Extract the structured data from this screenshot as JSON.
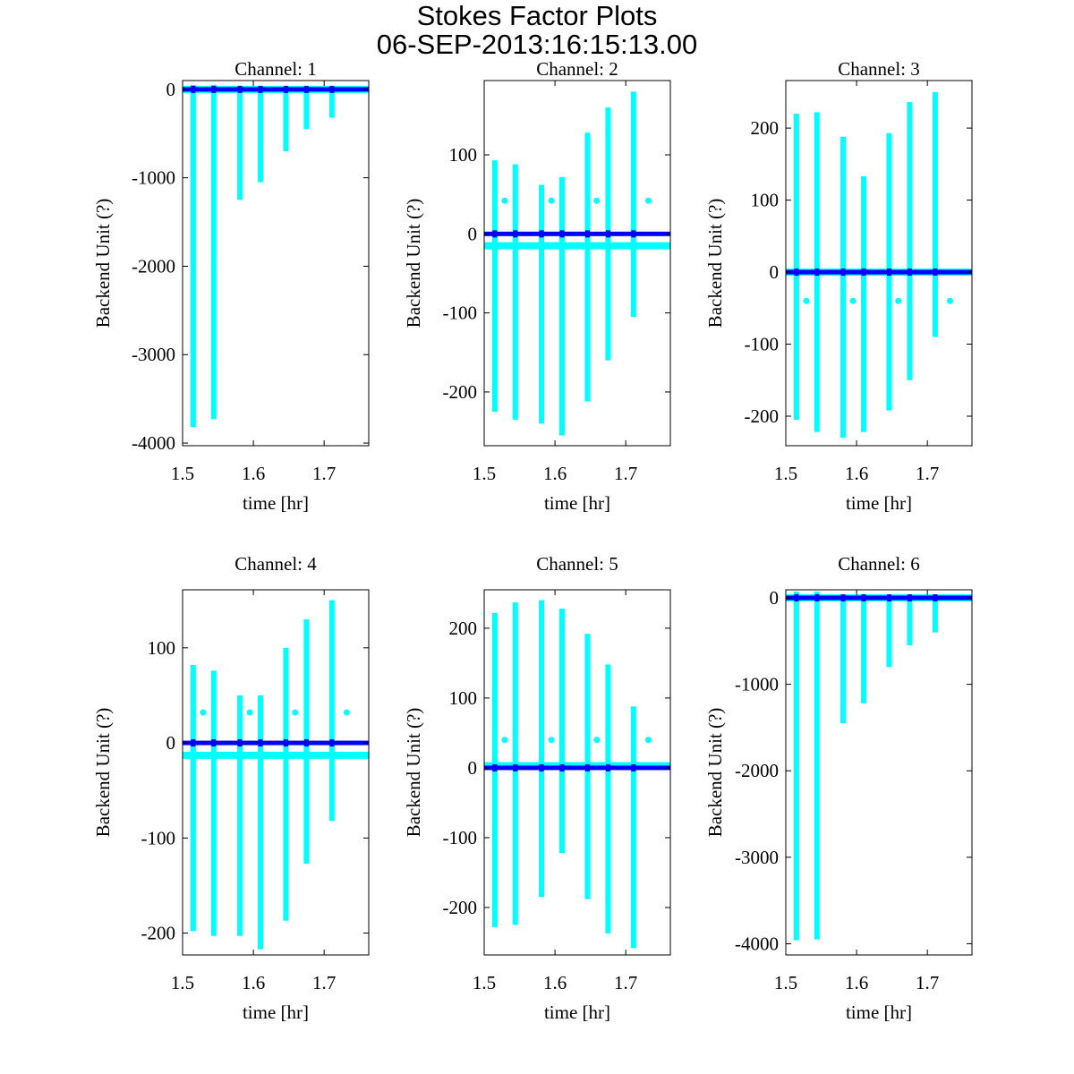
{
  "title": "Stokes Factor Plots",
  "subtitle": "06-SEP-2013:16:15:13.00",
  "colors": {
    "streak": "#00ffff",
    "zero_line": "#0000ff",
    "axes": "#000000"
  },
  "chart_data": [
    {
      "type": "scatter",
      "title": "Channel: 1",
      "xlabel": "time [hr]",
      "ylabel": "Backend Unit (?)",
      "xlim": [
        1.5,
        1.763
      ],
      "ylim": [
        -4030,
        100
      ],
      "xticks": [
        "1.5",
        "1.6",
        "1.7"
      ],
      "xtick_values": [
        1.5,
        1.6,
        1.7
      ],
      "yticks": [
        "0",
        "-1000",
        "-2000",
        "-3000",
        "-4000"
      ],
      "ytick_values": [
        0,
        -1000,
        -2000,
        -3000,
        -4000
      ],
      "baseline": 0,
      "zero_line": 0,
      "streaks": [
        {
          "x": 1.515,
          "min": -3820,
          "max": 50
        },
        {
          "x": 1.544,
          "min": -3730,
          "max": 50
        },
        {
          "x": 1.581,
          "min": -1250,
          "max": 0
        },
        {
          "x": 1.61,
          "min": -1050,
          "max": 0
        },
        {
          "x": 1.646,
          "min": -700,
          "max": 0
        },
        {
          "x": 1.675,
          "min": -450,
          "max": 0
        },
        {
          "x": 1.711,
          "min": -320,
          "max": 0
        }
      ],
      "dots": []
    },
    {
      "type": "scatter",
      "title": "Channel: 2",
      "xlabel": "time [hr]",
      "ylabel": "Backend Unit (?)",
      "xlim": [
        1.5,
        1.763
      ],
      "ylim": [
        -268,
        194
      ],
      "xticks": [
        "1.5",
        "1.6",
        "1.7"
      ],
      "xtick_values": [
        1.5,
        1.6,
        1.7
      ],
      "yticks": [
        "100",
        "0",
        "-100",
        "-200"
      ],
      "ytick_values": [
        100,
        0,
        -100,
        -200
      ],
      "baseline": -15,
      "zero_line": 0,
      "streaks": [
        {
          "x": 1.515,
          "min": -225,
          "max": 93
        },
        {
          "x": 1.544,
          "min": -235,
          "max": 88
        },
        {
          "x": 1.581,
          "min": -240,
          "max": 62
        },
        {
          "x": 1.61,
          "min": -255,
          "max": 72
        },
        {
          "x": 1.646,
          "min": -212,
          "max": 128
        },
        {
          "x": 1.675,
          "min": -160,
          "max": 160
        },
        {
          "x": 1.711,
          "min": -105,
          "max": 180
        }
      ],
      "dots": [
        {
          "x": 1.529,
          "y": 42
        },
        {
          "x": 1.595,
          "y": 42
        },
        {
          "x": 1.659,
          "y": 42
        },
        {
          "x": 1.732,
          "y": 42
        }
      ]
    },
    {
      "type": "scatter",
      "title": "Channel: 3",
      "xlabel": "time [hr]",
      "ylabel": "Backend Unit (?)",
      "xlim": [
        1.5,
        1.763
      ],
      "ylim": [
        -241,
        266
      ],
      "xticks": [
        "1.5",
        "1.6",
        "1.7"
      ],
      "xtick_values": [
        1.5,
        1.6,
        1.7
      ],
      "yticks": [
        "200",
        "100",
        "0",
        "-100",
        "-200"
      ],
      "ytick_values": [
        200,
        100,
        0,
        -100,
        -200
      ],
      "baseline": 0,
      "zero_line": 0,
      "streaks": [
        {
          "x": 1.515,
          "min": -205,
          "max": 220
        },
        {
          "x": 1.544,
          "min": -222,
          "max": 222
        },
        {
          "x": 1.581,
          "min": -230,
          "max": 188
        },
        {
          "x": 1.61,
          "min": -222,
          "max": 133
        },
        {
          "x": 1.646,
          "min": -192,
          "max": 193
        },
        {
          "x": 1.675,
          "min": -150,
          "max": 236
        },
        {
          "x": 1.711,
          "min": -90,
          "max": 250
        }
      ],
      "dots": [
        {
          "x": 1.529,
          "y": -40
        },
        {
          "x": 1.595,
          "y": -40
        },
        {
          "x": 1.659,
          "y": -40
        },
        {
          "x": 1.732,
          "y": -40
        }
      ]
    },
    {
      "type": "scatter",
      "title": "Channel: 4",
      "xlabel": "time [hr]",
      "ylabel": "Backend Unit (?)",
      "xlim": [
        1.5,
        1.763
      ],
      "ylim": [
        -223,
        161
      ],
      "xticks": [
        "1.5",
        "1.6",
        "1.7"
      ],
      "xtick_values": [
        1.5,
        1.6,
        1.7
      ],
      "yticks": [
        "100",
        "0",
        "-100",
        "-200"
      ],
      "ytick_values": [
        100,
        0,
        -100,
        -200
      ],
      "baseline": -13,
      "zero_line": 0,
      "streaks": [
        {
          "x": 1.515,
          "min": -198,
          "max": 82
        },
        {
          "x": 1.544,
          "min": -203,
          "max": 76
        },
        {
          "x": 1.581,
          "min": -203,
          "max": 50
        },
        {
          "x": 1.61,
          "min": -217,
          "max": 50
        },
        {
          "x": 1.646,
          "min": -187,
          "max": 100
        },
        {
          "x": 1.675,
          "min": -127,
          "max": 130
        },
        {
          "x": 1.711,
          "min": -82,
          "max": 150
        }
      ],
      "dots": [
        {
          "x": 1.529,
          "y": 32
        },
        {
          "x": 1.595,
          "y": 32
        },
        {
          "x": 1.659,
          "y": 32
        },
        {
          "x": 1.732,
          "y": 32
        }
      ]
    },
    {
      "type": "scatter",
      "title": "Channel: 5",
      "xlabel": "time [hr]",
      "ylabel": "Backend Unit (?)",
      "xlim": [
        1.5,
        1.763
      ],
      "ylim": [
        -268,
        255
      ],
      "xticks": [
        "1.5",
        "1.6",
        "1.7"
      ],
      "xtick_values": [
        1.5,
        1.6,
        1.7
      ],
      "yticks": [
        "200",
        "100",
        "0",
        "-100",
        "-200"
      ],
      "ytick_values": [
        200,
        100,
        0,
        -100,
        -200
      ],
      "baseline": 3,
      "zero_line": 0,
      "streaks": [
        {
          "x": 1.515,
          "min": -228,
          "max": 222
        },
        {
          "x": 1.544,
          "min": -225,
          "max": 237
        },
        {
          "x": 1.581,
          "min": -185,
          "max": 240
        },
        {
          "x": 1.61,
          "min": -122,
          "max": 228
        },
        {
          "x": 1.646,
          "min": -188,
          "max": 192
        },
        {
          "x": 1.675,
          "min": -237,
          "max": 148
        },
        {
          "x": 1.711,
          "min": -258,
          "max": 88
        }
      ],
      "dots": [
        {
          "x": 1.529,
          "y": 40
        },
        {
          "x": 1.595,
          "y": 40
        },
        {
          "x": 1.659,
          "y": 40
        },
        {
          "x": 1.732,
          "y": 40
        }
      ]
    },
    {
      "type": "scatter",
      "title": "Channel: 6",
      "xlabel": "time [hr]",
      "ylabel": "Backend Unit (?)",
      "xlim": [
        1.5,
        1.763
      ],
      "ylim": [
        -4130,
        93
      ],
      "xticks": [
        "1.5",
        "1.6",
        "1.7"
      ],
      "xtick_values": [
        1.5,
        1.6,
        1.7
      ],
      "yticks": [
        "0",
        "-1000",
        "-2000",
        "-3000",
        "-4000"
      ],
      "ytick_values": [
        0,
        -1000,
        -2000,
        -3000,
        -4000
      ],
      "baseline": 0,
      "zero_line": 0,
      "streaks": [
        {
          "x": 1.515,
          "min": -3960,
          "max": 70
        },
        {
          "x": 1.544,
          "min": -3950,
          "max": 70
        },
        {
          "x": 1.581,
          "min": -1450,
          "max": 0
        },
        {
          "x": 1.61,
          "min": -1220,
          "max": 0
        },
        {
          "x": 1.646,
          "min": -800,
          "max": 0
        },
        {
          "x": 1.675,
          "min": -550,
          "max": 0
        },
        {
          "x": 1.711,
          "min": -400,
          "max": 0
        }
      ],
      "dots": []
    }
  ]
}
